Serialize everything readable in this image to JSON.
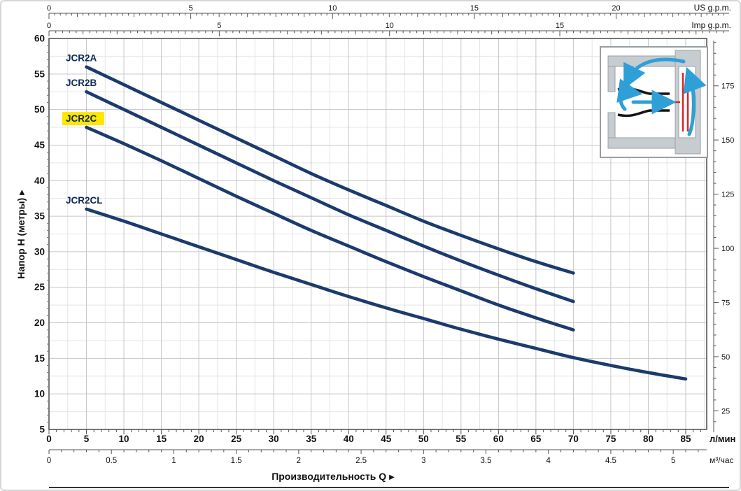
{
  "chart_data": {
    "type": "line",
    "xlabel": "Производительность Q",
    "ylabel": "Напор  H  (метры)",
    "arrow": "▶",
    "ylim": [
      5,
      60
    ],
    "xlim_lpm": [
      0,
      88
    ],
    "grid": "on",
    "axes": {
      "top_us": {
        "unit": "US g.p.m.",
        "ticks": [
          0,
          5,
          10,
          15,
          20
        ]
      },
      "top_imp": {
        "unit": "Imp g.p.m.",
        "ticks": [
          0,
          5,
          10,
          15
        ]
      },
      "bottom_lpm": {
        "unit": "л/мин",
        "ticks": [
          0,
          5,
          10,
          15,
          20,
          25,
          30,
          35,
          40,
          45,
          50,
          55,
          60,
          65,
          70,
          75,
          80,
          85
        ]
      },
      "bottom_m3h": {
        "unit": "м³/час",
        "ticks": [
          0,
          0.5,
          1,
          1.5,
          2,
          2.5,
          3,
          3.5,
          4,
          4.5,
          5
        ]
      },
      "left_m": {
        "ticks": [
          5,
          10,
          15,
          20,
          25,
          30,
          35,
          40,
          45,
          50,
          55,
          60
        ]
      },
      "right_ft": {
        "ticks": [
          25,
          50,
          75,
          100,
          125,
          150,
          175
        ]
      }
    },
    "highlighted_series": "JCR2C",
    "series": [
      {
        "name": "JCR2A",
        "points": [
          [
            5,
            56
          ],
          [
            10,
            53.5
          ],
          [
            15,
            51
          ],
          [
            20,
            48.5
          ],
          [
            25,
            46
          ],
          [
            30,
            43.5
          ],
          [
            35,
            41
          ],
          [
            40,
            38.7
          ],
          [
            45,
            36.5
          ],
          [
            50,
            34.3
          ],
          [
            55,
            32.3
          ],
          [
            60,
            30.4
          ],
          [
            65,
            28.6
          ],
          [
            70,
            27
          ]
        ]
      },
      {
        "name": "JCR2B",
        "points": [
          [
            5,
            52.5
          ],
          [
            10,
            50
          ],
          [
            15,
            47.5
          ],
          [
            20,
            45
          ],
          [
            25,
            42.5
          ],
          [
            30,
            40
          ],
          [
            35,
            37.6
          ],
          [
            40,
            35.2
          ],
          [
            45,
            33
          ],
          [
            50,
            30.8
          ],
          [
            55,
            28.7
          ],
          [
            60,
            26.7
          ],
          [
            65,
            24.8
          ],
          [
            70,
            23
          ]
        ]
      },
      {
        "name": "JCR2C",
        "points": [
          [
            5,
            47.5
          ],
          [
            10,
            45.2
          ],
          [
            15,
            42.8
          ],
          [
            20,
            40.3
          ],
          [
            25,
            37.8
          ],
          [
            30,
            35.4
          ],
          [
            35,
            33
          ],
          [
            40,
            30.8
          ],
          [
            45,
            28.6
          ],
          [
            50,
            26.5
          ],
          [
            55,
            24.5
          ],
          [
            60,
            22.5
          ],
          [
            65,
            20.7
          ],
          [
            70,
            19
          ]
        ]
      },
      {
        "name": "JCR2CL",
        "points": [
          [
            5,
            36
          ],
          [
            10,
            34.3
          ],
          [
            15,
            32.5
          ],
          [
            20,
            30.7
          ],
          [
            25,
            28.9
          ],
          [
            30,
            27.1
          ],
          [
            35,
            25.4
          ],
          [
            40,
            23.7
          ],
          [
            45,
            22.1
          ],
          [
            50,
            20.6
          ],
          [
            55,
            19.1
          ],
          [
            60,
            17.7
          ],
          [
            65,
            16.4
          ],
          [
            70,
            15.1
          ],
          [
            75,
            14
          ],
          [
            80,
            13
          ],
          [
            85,
            12.1
          ]
        ]
      }
    ],
    "colors": {
      "curve": "#1c3a6d",
      "label": "#0e2a58",
      "highlight": "#ffe600",
      "grid_major": "#c6c6c6",
      "grid_minor": "#e4e4e4",
      "axis": "#4a4a4a",
      "text": "#111111"
    }
  }
}
